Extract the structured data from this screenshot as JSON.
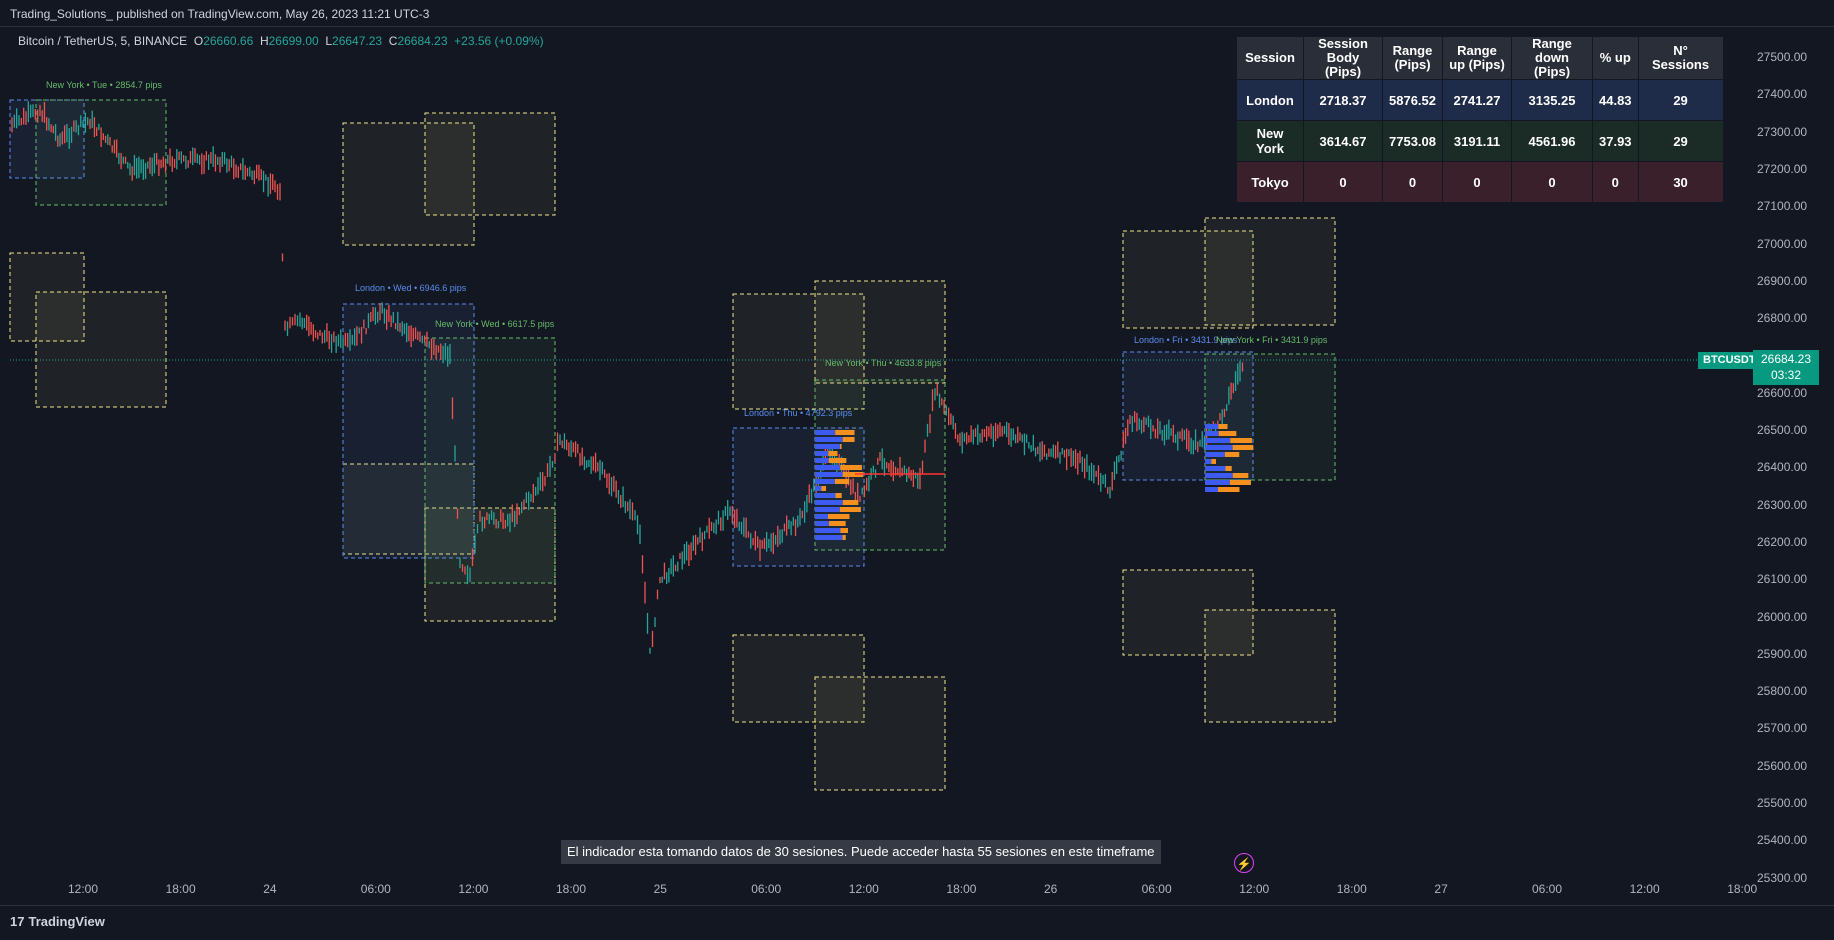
{
  "header": {
    "published": "Trading_Solutions_ published on TradingView.com, May 26, 2023 11:21 UTC-3"
  },
  "symbol": {
    "name": "Bitcoin / TetherUS, 5, BINANCE",
    "open_label": "O",
    "open": "26660.66",
    "high_label": "H",
    "high": "26699.00",
    "low_label": "L",
    "low": "26647.23",
    "close_label": "C",
    "close": "26684.23",
    "change": "+23.56 (+0.09%)"
  },
  "table": {
    "headers": [
      "Session",
      "Session Body (Pips)",
      "Range (Pips)",
      "Range up (Pips)",
      "Range down (Pips)",
      "% up",
      "N° Sessions"
    ],
    "rows": [
      [
        "London",
        "2718.37",
        "5876.52",
        "2741.27",
        "3135.25",
        "44.83",
        "29"
      ],
      [
        "New York",
        "3614.67",
        "7753.08",
        "3191.11",
        "4561.96",
        "37.93",
        "29"
      ],
      [
        "Tokyo",
        "0",
        "0",
        "0",
        "0",
        "0",
        "30"
      ]
    ]
  },
  "price_axis": {
    "labels": [
      "27500.00",
      "27400.00",
      "27300.00",
      "27200.00",
      "27100.00",
      "27000.00",
      "26900.00",
      "26800.00",
      "26700.00",
      "26600.00",
      "26500.00",
      "26400.00",
      "26300.00",
      "26200.00",
      "26100.00",
      "26000.00",
      "25900.00",
      "25800.00",
      "25700.00",
      "25600.00",
      "25500.00",
      "25400.00",
      "25300.00"
    ],
    "last_price": "26684.23",
    "countdown": "03:32",
    "symbol_tag": "BTCUSDT"
  },
  "time_axis": {
    "labels": [
      "12:00",
      "18:00",
      "24",
      "06:00",
      "12:00",
      "18:00",
      "25",
      "06:00",
      "12:00",
      "18:00",
      "26",
      "06:00",
      "12:00",
      "18:00",
      "27",
      "06:00",
      "12:00",
      "18:00"
    ]
  },
  "session_labels": [
    "New York • Tue • 2854.7 pips",
    "London • Wed • 6946.6 pips",
    "New York • Wed • 6617.5 pips",
    "New York • Thu • 4633.8 pips",
    "London • Thu • 4792.3 pips",
    "London • Fri • 3431.9 pips",
    "New York • Fri • 3431.9 pips"
  ],
  "notice": "El indicador esta tomando datos de  30 sesiones. Puede acceder hasta 55 sesiones en este timeframe",
  "footer": {
    "brand": "TradingView",
    "logo_mark": "17"
  },
  "colors": {
    "background": "#131722",
    "up": "#26a69a",
    "down": "#ef5350",
    "london": "#5b8def",
    "newyork": "#66bb6a",
    "range_box": "#f0e68c",
    "profile_blue": "#3d5af1",
    "profile_orange": "#f5901e"
  }
}
